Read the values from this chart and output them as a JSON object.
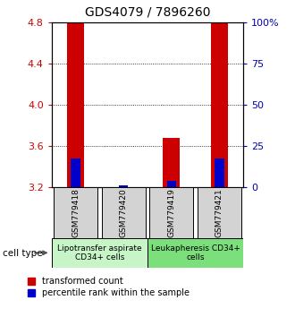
{
  "title": "GDS4079 / 7896260",
  "samples": [
    "GSM779418",
    "GSM779420",
    "GSM779419",
    "GSM779421"
  ],
  "red_values": [
    4.8,
    3.2,
    3.68,
    4.8
  ],
  "blue_values": [
    3.48,
    3.22,
    3.26,
    3.48
  ],
  "ymin": 3.2,
  "ymax": 4.8,
  "yticks_left": [
    3.2,
    3.6,
    4.0,
    4.4,
    4.8
  ],
  "yticks_right": [
    0,
    25,
    50,
    75,
    100
  ],
  "yticks_right_labels": [
    "0",
    "25",
    "50",
    "75",
    "100%"
  ],
  "gridlines": [
    3.6,
    4.0,
    4.4
  ],
  "group_labels": [
    "Lipotransfer aspirate\nCD34+ cells",
    "Leukapheresis CD34+\ncells"
  ],
  "group_colors": [
    "#c8f5c8",
    "#7be07b"
  ],
  "cell_type_label": "cell type",
  "legend_red": "transformed count",
  "legend_blue": "percentile rank within the sample",
  "bar_width": 0.35,
  "red_color": "#cc0000",
  "blue_color": "#0000cc",
  "left_label_color": "#cc0000",
  "right_label_color": "#0000bb",
  "title_fontsize": 10,
  "tick_fontsize": 8,
  "sample_label_fontsize": 6.5,
  "group_label_fontsize": 6.5,
  "legend_fontsize": 7,
  "sample_box_color": "#d3d3d3"
}
